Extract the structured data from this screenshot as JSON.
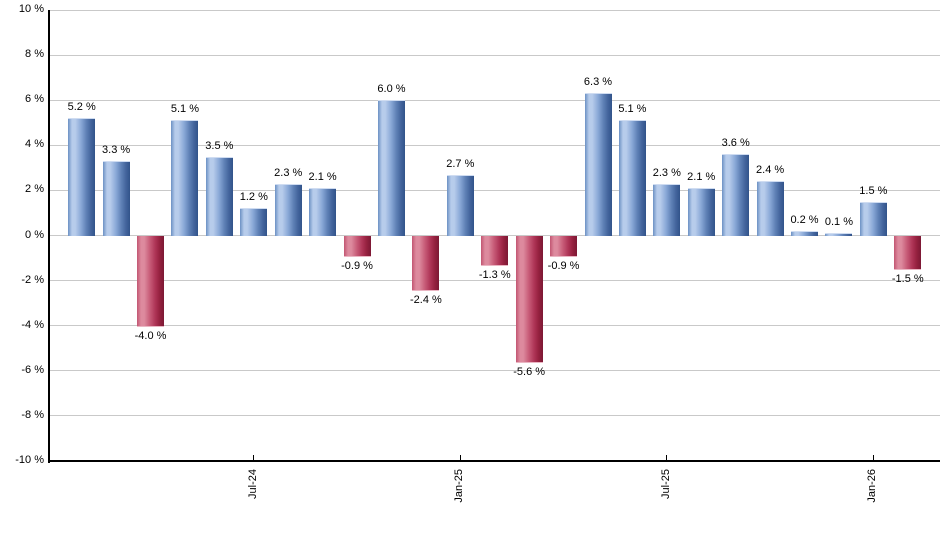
{
  "chart_data": {
    "type": "bar",
    "title": "",
    "xlabel": "",
    "ylabel": "",
    "ylim": [
      -10,
      10
    ],
    "y_tick_step": 2,
    "grid": true,
    "legend": false,
    "y_tick_labels": [
      "10 %",
      "8 %",
      "6 %",
      "4 %",
      "2 %",
      "0 %",
      "-2 %",
      "-4 %",
      "-6 %",
      "-8 %",
      "-10 %"
    ],
    "x_tick_labels": [
      {
        "bar_index": 5,
        "label": "Jul-24"
      },
      {
        "bar_index": 11,
        "label": "Jan-25"
      },
      {
        "bar_index": 17,
        "label": "Jul-25"
      },
      {
        "bar_index": 23,
        "label": "Jan-26"
      }
    ],
    "series": [
      {
        "name": "monthly-return-percent",
        "values": [
          5.2,
          3.3,
          -4.0,
          5.1,
          3.5,
          1.2,
          2.3,
          2.1,
          -0.9,
          6.0,
          -2.4,
          2.7,
          -1.3,
          -5.6,
          -0.9,
          6.3,
          5.1,
          2.3,
          2.1,
          3.6,
          2.4,
          0.2,
          0.1,
          1.5,
          -1.5
        ]
      }
    ],
    "bar_labels": [
      "5.2 %",
      "3.3 %",
      "-4.0 %",
      "5.1 %",
      "3.5 %",
      "1.2 %",
      "2.3 %",
      "2.1 %",
      "-0.9 %",
      "6.0 %",
      "-2.4 %",
      "2.7 %",
      "-1.3 %",
      "-5.6 %",
      "-0.9 %",
      "6.3 %",
      "5.1 %",
      "2.3 %",
      "2.1 %",
      "3.6 %",
      "2.4 %",
      "0.2 %",
      "0.1 %",
      "1.5 %",
      "-1.5 %"
    ],
    "colors": {
      "positive_bar": "#8aa9d7",
      "positive_bar_highlight": "#b7cceb",
      "positive_bar_edge": "#31538a",
      "negative_bar": "#c75b77",
      "negative_bar_highlight": "#dd8a9e",
      "negative_bar_edge": "#7c1834",
      "gridline": "#c9c9c9",
      "axis": "#000000",
      "label_text": "#000000"
    }
  }
}
